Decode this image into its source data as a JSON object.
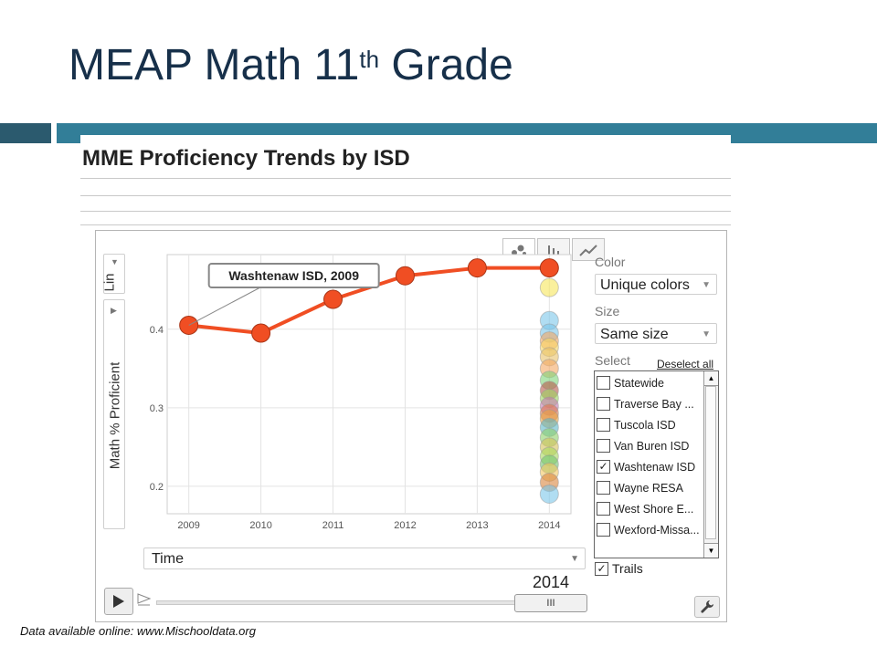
{
  "slide": {
    "title_main": "MEAP Math 11",
    "title_sup": "th",
    "title_end": " Grade",
    "footer": "Data available online: www.Mischooldata.org"
  },
  "screenshot": {
    "title": "MME Proficiency Trends by ISD"
  },
  "controls": {
    "y_scale": "Lin",
    "y_axis": "Math % Proficient",
    "x_axis": "Time",
    "color_label": "Color",
    "color_value": "Unique colors",
    "size_label": "Size",
    "size_value": "Same size",
    "select_label": "Select",
    "deselect_all": "Deselect all",
    "trails_label": "Trails",
    "trails_checked": true,
    "current_time": "2014",
    "slider_thumb": "III"
  },
  "select_list": [
    {
      "label": "Statewide",
      "checked": false
    },
    {
      "label": "Traverse Bay ...",
      "checked": false
    },
    {
      "label": "Tuscola ISD",
      "checked": false
    },
    {
      "label": "Van Buren ISD",
      "checked": false
    },
    {
      "label": "Washtenaw ISD",
      "checked": true
    },
    {
      "label": "Wayne RESA",
      "checked": false
    },
    {
      "label": "West Shore E...",
      "checked": false
    },
    {
      "label": "Wexford-Missa...",
      "checked": false
    }
  ],
  "chart_data": {
    "type": "scatter",
    "x": [
      2009,
      2010,
      2011,
      2012,
      2013,
      2014
    ],
    "xlim": [
      2008.7,
      2014.3
    ],
    "ylim": [
      0.165,
      0.495
    ],
    "yticks": [
      0.2,
      0.3,
      0.4
    ],
    "ylabel": "Math % Proficient",
    "xlabel": "Time",
    "trail": {
      "name": "Washtenaw ISD",
      "color": "#f04e23",
      "points": [
        {
          "x": 2009,
          "y": 0.405
        },
        {
          "x": 2010,
          "y": 0.395
        },
        {
          "x": 2011,
          "y": 0.438
        },
        {
          "x": 2012,
          "y": 0.468
        },
        {
          "x": 2013,
          "y": 0.478
        },
        {
          "x": 2014,
          "y": 0.478
        }
      ]
    },
    "tooltip": "Washtenaw ISD, 2009",
    "bubbles_2014": [
      {
        "y": 0.453,
        "color": "#f6e65a"
      },
      {
        "y": 0.411,
        "color": "#7cc7ea"
      },
      {
        "y": 0.395,
        "color": "#7cc7ea"
      },
      {
        "y": 0.385,
        "color": "#f4a964"
      },
      {
        "y": 0.377,
        "color": "#f6d463"
      },
      {
        "y": 0.365,
        "color": "#e8c26b"
      },
      {
        "y": 0.35,
        "color": "#f4a964"
      },
      {
        "y": 0.335,
        "color": "#7ed37a"
      },
      {
        "y": 0.322,
        "color": "#b85a4c"
      },
      {
        "y": 0.312,
        "color": "#9bd35f"
      },
      {
        "y": 0.302,
        "color": "#c57bb0"
      },
      {
        "y": 0.293,
        "color": "#e0774e"
      },
      {
        "y": 0.286,
        "color": "#e6a342"
      },
      {
        "y": 0.275,
        "color": "#5fb8c7"
      },
      {
        "y": 0.262,
        "color": "#8fd16a"
      },
      {
        "y": 0.25,
        "color": "#d3c25a"
      },
      {
        "y": 0.238,
        "color": "#a7d85c"
      },
      {
        "y": 0.228,
        "color": "#73c36e"
      },
      {
        "y": 0.218,
        "color": "#f2c660"
      },
      {
        "y": 0.205,
        "color": "#d9863d"
      },
      {
        "y": 0.19,
        "color": "#7cc7ea"
      }
    ]
  }
}
